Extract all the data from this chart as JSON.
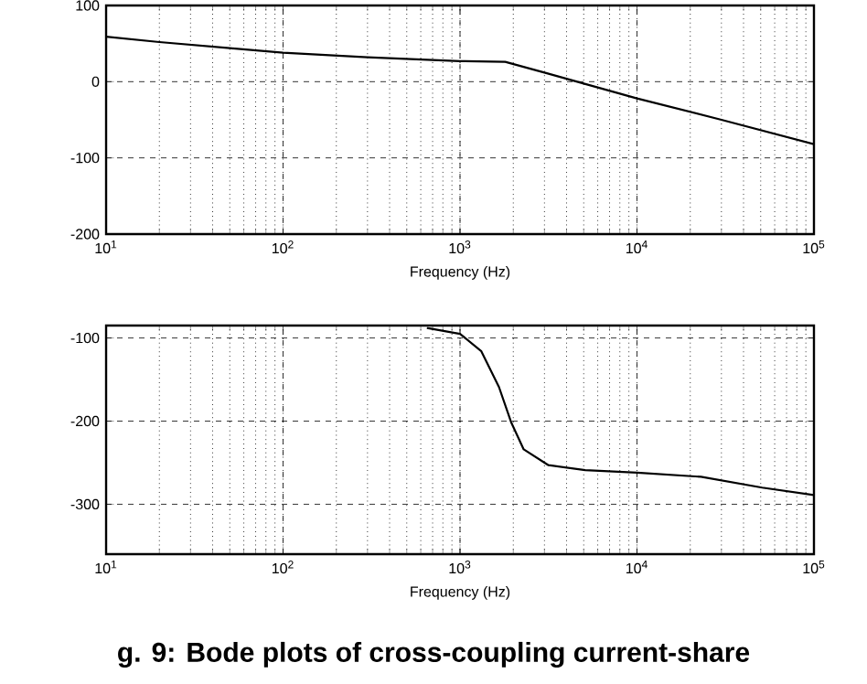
{
  "chart_data": [
    {
      "type": "line",
      "log": "x",
      "grid": true,
      "xlabel": "Frequency (Hz)",
      "xlim": [
        10,
        100000
      ],
      "ylim": [
        -200,
        100
      ],
      "xticks": [
        {
          "value": 10,
          "label": "10$^{1}$"
        },
        {
          "value": 100,
          "label": "10$^{2}$"
        },
        {
          "value": 1000,
          "label": "10$^{3}$"
        },
        {
          "value": 10000,
          "label": "10$^{4}$"
        },
        {
          "value": 100000,
          "label": "10$^{5}$"
        }
      ],
      "yticks": [
        -200,
        -100,
        0,
        100
      ],
      "series": [
        {
          "color": "#000000",
          "x": [
            10,
            20,
            50,
            100,
            300,
            1000,
            1800,
            3000,
            10000,
            30000,
            100000
          ],
          "values": [
            59,
            52,
            44,
            38,
            32,
            27,
            26,
            12,
            -22,
            -50,
            -82
          ]
        }
      ]
    },
    {
      "type": "line",
      "log": "x",
      "grid": true,
      "xlabel": "Frequency (Hz)",
      "xlim": [
        10,
        100000
      ],
      "ylim": [
        -360,
        -85
      ],
      "xticks": [
        {
          "value": 10,
          "label": "10$^{1}$"
        },
        {
          "value": 100,
          "label": "10$^{2}$"
        },
        {
          "value": 1000,
          "label": "10$^{3}$"
        },
        {
          "value": 10000,
          "label": "10$^{4}$"
        },
        {
          "value": 100000,
          "label": "10$^{5}$"
        }
      ],
      "yticks": [
        -300,
        -200,
        -100
      ],
      "annotations": [
        "g. 9: Bode plots of cross-coupling current-share"
      ],
      "series": [
        {
          "color": "#000000",
          "x": [
            650,
            1000,
            1320,
            1660,
            1950,
            2290,
            3160,
            5100,
            10000,
            23000,
            51000,
            100000
          ],
          "values": [
            -88,
            -95,
            -116,
            -159,
            -202,
            -234,
            -253,
            -259,
            -262,
            -267,
            -280,
            -289
          ]
        }
      ]
    }
  ]
}
